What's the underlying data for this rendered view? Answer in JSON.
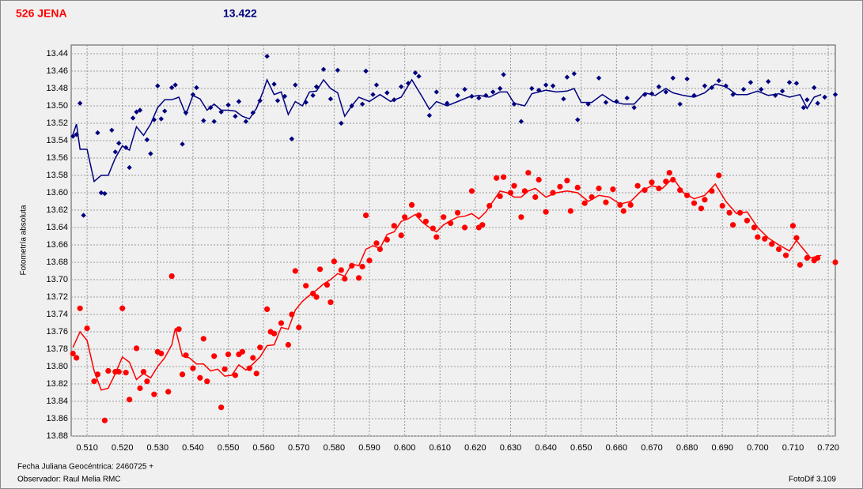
{
  "header": {
    "object": "526 JENA",
    "magnitude": "13.422"
  },
  "footer": {
    "date": "Fecha Juliana Geocéntrica: 2460725 +",
    "observer": "Observador: Raul Melia RMC",
    "software": "FotoDif 3.109"
  },
  "chart_data": {
    "type": "scatter",
    "y_label": "Fotometría absoluta",
    "grid": true,
    "y_inverted": true,
    "xlim": [
      0.5055,
      0.722
    ],
    "ylim": [
      13.88,
      13.43
    ],
    "xticks": [
      {
        "value": 0.51,
        "label": "0.510"
      },
      {
        "value": 0.52,
        "label": "0.520"
      },
      {
        "value": 0.53,
        "label": "0.530"
      },
      {
        "value": 0.54,
        "label": "0.540"
      },
      {
        "value": 0.55,
        "label": "0.550"
      },
      {
        "value": 0.56,
        "label": "0.560"
      },
      {
        "value": 0.57,
        "label": "0.570"
      },
      {
        "value": 0.58,
        "label": "0.580"
      },
      {
        "value": 0.59,
        "label": "0.590"
      },
      {
        "value": 0.6,
        "label": "0.600"
      },
      {
        "value": 0.61,
        "label": "0.610"
      },
      {
        "value": 0.62,
        "label": "0.620"
      },
      {
        "value": 0.63,
        "label": "0.630"
      },
      {
        "value": 0.64,
        "label": "0.640"
      },
      {
        "value": 0.65,
        "label": "0.650"
      },
      {
        "value": 0.66,
        "label": "0.660"
      },
      {
        "value": 0.67,
        "label": "0.670"
      },
      {
        "value": 0.68,
        "label": "0.680"
      },
      {
        "value": 0.69,
        "label": "0.690"
      },
      {
        "value": 0.7,
        "label": "0.700"
      },
      {
        "value": 0.71,
        "label": "0.710"
      },
      {
        "value": 0.72,
        "label": "0.720"
      }
    ],
    "yticks": [
      13.44,
      13.46,
      13.48,
      {
        "value": 13.5,
        "label": "13.50"
      },
      13.52,
      13.54,
      13.56,
      13.58,
      {
        "value": 13.6,
        "label": "13.60"
      },
      13.62,
      13.64,
      13.66,
      13.68,
      {
        "value": 13.7,
        "label": "13.70"
      },
      13.72,
      13.74,
      13.76,
      13.78,
      {
        "value": 13.8,
        "label": "13.80"
      },
      13.82,
      13.84,
      13.86,
      13.88
    ],
    "series": [
      {
        "color": "#000080",
        "marker": "diamond",
        "x": [
          0.506,
          0.507,
          0.508,
          0.509,
          0.513,
          0.514,
          0.515,
          0.517,
          0.518,
          0.519,
          0.521,
          0.522,
          0.523,
          0.524,
          0.525,
          0.527,
          0.528,
          0.529,
          0.53,
          0.531,
          0.532,
          0.534,
          0.535,
          0.537,
          0.538,
          0.54,
          0.541,
          0.543,
          0.545,
          0.546,
          0.548,
          0.55,
          0.552,
          0.553,
          0.555,
          0.557,
          0.559,
          0.561,
          0.563,
          0.564,
          0.566,
          0.568,
          0.569,
          0.572,
          0.574,
          0.575,
          0.577,
          0.579,
          0.581,
          0.582,
          0.585,
          0.588,
          0.589,
          0.591,
          0.592,
          0.595,
          0.597,
          0.599,
          0.601,
          0.603,
          0.604,
          0.607,
          0.609,
          0.612,
          0.615,
          0.617,
          0.619,
          0.621,
          0.623,
          0.625,
          0.627,
          0.628,
          0.631,
          0.633,
          0.636,
          0.638,
          0.64,
          0.642,
          0.645,
          0.646,
          0.648,
          0.649,
          0.652,
          0.655,
          0.657,
          0.66,
          0.663,
          0.665,
          0.668,
          0.67,
          0.672,
          0.674,
          0.676,
          0.678,
          0.68,
          0.682,
          0.685,
          0.687,
          0.689,
          0.691,
          0.693,
          0.696,
          0.698,
          0.701,
          0.703,
          0.705,
          0.707,
          0.709,
          0.711,
          0.713,
          0.714,
          0.716,
          0.717,
          0.719,
          0.722
        ],
        "values": [
          13.535,
          13.533,
          13.497,
          13.626,
          13.531,
          13.6,
          13.601,
          13.528,
          13.553,
          13.543,
          13.548,
          13.571,
          13.514,
          13.507,
          13.505,
          13.539,
          13.555,
          13.516,
          13.477,
          13.515,
          13.506,
          13.479,
          13.476,
          13.544,
          13.508,
          13.487,
          13.479,
          13.517,
          13.502,
          13.518,
          13.507,
          13.499,
          13.512,
          13.495,
          13.518,
          13.508,
          13.494,
          13.443,
          13.475,
          13.494,
          13.489,
          13.538,
          13.476,
          13.496,
          13.488,
          13.478,
          13.458,
          13.492,
          13.459,
          13.52,
          13.5,
          13.498,
          13.46,
          13.487,
          13.476,
          13.485,
          13.493,
          13.478,
          13.474,
          13.462,
          13.466,
          13.511,
          13.484,
          13.497,
          13.488,
          13.481,
          13.489,
          13.491,
          13.488,
          13.484,
          13.48,
          13.464,
          13.498,
          13.518,
          13.48,
          13.482,
          13.476,
          13.477,
          13.492,
          13.467,
          13.463,
          13.516,
          13.498,
          13.468,
          13.496,
          13.495,
          13.491,
          13.502,
          13.487,
          13.486,
          13.478,
          13.484,
          13.468,
          13.498,
          13.469,
          13.488,
          13.477,
          13.479,
          13.471,
          13.477,
          13.487,
          13.481,
          13.473,
          13.481,
          13.472,
          13.488,
          13.483,
          13.473,
          13.474,
          13.502,
          13.493,
          13.479,
          13.497,
          13.49,
          13.487
        ]
      },
      {
        "color": "#000080",
        "marker": "line",
        "x": [
          0.506,
          0.507,
          0.508,
          0.51,
          0.512,
          0.514,
          0.516,
          0.518,
          0.52,
          0.522,
          0.524,
          0.526,
          0.528,
          0.53,
          0.532,
          0.534,
          0.536,
          0.538,
          0.54,
          0.542,
          0.544,
          0.546,
          0.548,
          0.55,
          0.552,
          0.554,
          0.556,
          0.558,
          0.56,
          0.561,
          0.563,
          0.565,
          0.567,
          0.569,
          0.571,
          0.573,
          0.575,
          0.577,
          0.579,
          0.581,
          0.583,
          0.585,
          0.587,
          0.59,
          0.593,
          0.596,
          0.599,
          0.602,
          0.605,
          0.607,
          0.609,
          0.612,
          0.615,
          0.618,
          0.621,
          0.624,
          0.627,
          0.629,
          0.631,
          0.634,
          0.636,
          0.64,
          0.643,
          0.646,
          0.648,
          0.65,
          0.653,
          0.656,
          0.659,
          0.662,
          0.665,
          0.668,
          0.671,
          0.674,
          0.676,
          0.679,
          0.682,
          0.685,
          0.688,
          0.691,
          0.694,
          0.697,
          0.7,
          0.703,
          0.706,
          0.709,
          0.712,
          0.714,
          0.716,
          0.718
        ],
        "values": [
          13.533,
          13.521,
          13.55,
          13.55,
          13.587,
          13.58,
          13.58,
          13.56,
          13.546,
          13.551,
          13.524,
          13.534,
          13.521,
          13.502,
          13.493,
          13.493,
          13.49,
          13.51,
          13.488,
          13.492,
          13.505,
          13.498,
          13.505,
          13.505,
          13.506,
          13.512,
          13.515,
          13.503,
          13.482,
          13.47,
          13.487,
          13.484,
          13.51,
          13.495,
          13.5,
          13.484,
          13.483,
          13.47,
          13.48,
          13.485,
          13.512,
          13.5,
          13.49,
          13.495,
          13.487,
          13.495,
          13.49,
          13.47,
          13.49,
          13.504,
          13.495,
          13.5,
          13.495,
          13.49,
          13.488,
          13.49,
          13.484,
          13.484,
          13.497,
          13.5,
          13.486,
          13.482,
          13.484,
          13.483,
          13.48,
          13.496,
          13.496,
          13.487,
          13.495,
          13.498,
          13.498,
          13.485,
          13.488,
          13.48,
          13.485,
          13.488,
          13.49,
          13.485,
          13.475,
          13.478,
          13.487,
          13.487,
          13.483,
          13.488,
          13.486,
          13.49,
          13.487,
          13.503,
          13.49,
          13.487
        ]
      },
      {
        "color": "#ff0000",
        "marker": "circle",
        "x": [
          0.506,
          0.507,
          0.508,
          0.51,
          0.512,
          0.513,
          0.515,
          0.516,
          0.518,
          0.519,
          0.52,
          0.521,
          0.522,
          0.524,
          0.525,
          0.526,
          0.527,
          0.529,
          0.53,
          0.531,
          0.533,
          0.534,
          0.536,
          0.537,
          0.538,
          0.54,
          0.542,
          0.543,
          0.544,
          0.546,
          0.548,
          0.549,
          0.55,
          0.552,
          0.553,
          0.554,
          0.556,
          0.557,
          0.558,
          0.559,
          0.561,
          0.562,
          0.563,
          0.565,
          0.567,
          0.568,
          0.569,
          0.57,
          0.572,
          0.574,
          0.575,
          0.576,
          0.578,
          0.579,
          0.58,
          0.582,
          0.583,
          0.585,
          0.587,
          0.588,
          0.589,
          0.59,
          0.592,
          0.593,
          0.595,
          0.597,
          0.599,
          0.6,
          0.602,
          0.604,
          0.606,
          0.608,
          0.609,
          0.611,
          0.613,
          0.615,
          0.617,
          0.619,
          0.621,
          0.622,
          0.624,
          0.626,
          0.627,
          0.628,
          0.63,
          0.631,
          0.633,
          0.634,
          0.635,
          0.637,
          0.638,
          0.64,
          0.642,
          0.644,
          0.646,
          0.647,
          0.649,
          0.651,
          0.653,
          0.655,
          0.657,
          0.659,
          0.661,
          0.662,
          0.664,
          0.666,
          0.668,
          0.67,
          0.672,
          0.674,
          0.675,
          0.676,
          0.678,
          0.68,
          0.682,
          0.684,
          0.685,
          0.687,
          0.689,
          0.69,
          0.692,
          0.693,
          0.695,
          0.697,
          0.699,
          0.7,
          0.702,
          0.704,
          0.706,
          0.708,
          0.71,
          0.711,
          0.712,
          0.714,
          0.716,
          0.717,
          0.722
        ],
        "values": [
          13.785,
          13.79,
          13.733,
          13.756,
          13.817,
          13.809,
          13.862,
          13.805,
          13.806,
          13.806,
          13.733,
          13.807,
          13.838,
          13.779,
          13.825,
          13.806,
          13.817,
          13.832,
          13.783,
          13.785,
          13.829,
          13.696,
          13.757,
          13.809,
          13.787,
          13.802,
          13.813,
          13.768,
          13.817,
          13.788,
          13.847,
          13.803,
          13.786,
          13.81,
          13.786,
          13.783,
          13.802,
          13.79,
          13.808,
          13.778,
          13.734,
          13.76,
          13.762,
          13.75,
          13.775,
          13.74,
          13.69,
          13.755,
          13.707,
          13.716,
          13.72,
          13.688,
          13.706,
          13.726,
          13.679,
          13.689,
          13.699,
          13.684,
          13.698,
          13.685,
          13.626,
          13.678,
          13.658,
          13.665,
          13.654,
          13.638,
          13.649,
          13.628,
          13.614,
          13.626,
          13.633,
          13.641,
          13.651,
          13.628,
          13.635,
          13.623,
          13.64,
          13.598,
          13.64,
          13.637,
          13.615,
          13.583,
          13.604,
          13.582,
          13.6,
          13.592,
          13.628,
          13.598,
          13.577,
          13.605,
          13.585,
          13.622,
          13.6,
          13.593,
          13.586,
          13.621,
          13.594,
          13.612,
          13.605,
          13.595,
          13.611,
          13.596,
          13.614,
          13.621,
          13.614,
          13.592,
          13.597,
          13.588,
          13.595,
          13.587,
          13.577,
          13.585,
          13.597,
          13.603,
          13.612,
          13.618,
          13.608,
          13.598,
          13.58,
          13.615,
          13.623,
          13.637,
          13.623,
          13.632,
          13.64,
          13.651,
          13.653,
          13.659,
          13.665,
          13.672,
          13.638,
          13.652,
          13.683,
          13.675,
          13.678,
          13.675,
          13.68
        ]
      },
      {
        "color": "#ff0000",
        "marker": "line",
        "x": [
          0.506,
          0.508,
          0.51,
          0.512,
          0.514,
          0.516,
          0.518,
          0.52,
          0.522,
          0.524,
          0.526,
          0.528,
          0.53,
          0.532,
          0.534,
          0.535,
          0.537,
          0.539,
          0.541,
          0.543,
          0.545,
          0.547,
          0.549,
          0.551,
          0.553,
          0.555,
          0.557,
          0.559,
          0.561,
          0.563,
          0.565,
          0.567,
          0.569,
          0.571,
          0.573,
          0.575,
          0.577,
          0.579,
          0.581,
          0.583,
          0.585,
          0.587,
          0.589,
          0.591,
          0.593,
          0.595,
          0.597,
          0.599,
          0.601,
          0.603,
          0.605,
          0.607,
          0.609,
          0.611,
          0.613,
          0.615,
          0.617,
          0.619,
          0.621,
          0.623,
          0.625,
          0.627,
          0.629,
          0.631,
          0.633,
          0.635,
          0.637,
          0.64,
          0.643,
          0.646,
          0.649,
          0.652,
          0.655,
          0.658,
          0.661,
          0.664,
          0.667,
          0.67,
          0.673,
          0.676,
          0.679,
          0.682,
          0.685,
          0.688,
          0.691,
          0.694,
          0.697,
          0.7,
          0.703,
          0.706,
          0.709,
          0.711,
          0.713,
          0.715,
          0.718
        ],
        "values": [
          13.778,
          13.76,
          13.77,
          13.805,
          13.827,
          13.825,
          13.808,
          13.789,
          13.795,
          13.815,
          13.808,
          13.813,
          13.8,
          13.79,
          13.775,
          13.756,
          13.788,
          13.79,
          13.797,
          13.797,
          13.805,
          13.803,
          13.811,
          13.81,
          13.798,
          13.804,
          13.797,
          13.789,
          13.776,
          13.775,
          13.755,
          13.757,
          13.735,
          13.725,
          13.718,
          13.712,
          13.705,
          13.7,
          13.693,
          13.696,
          13.682,
          13.684,
          13.665,
          13.661,
          13.664,
          13.648,
          13.645,
          13.633,
          13.63,
          13.625,
          13.634,
          13.64,
          13.645,
          13.637,
          13.632,
          13.628,
          13.627,
          13.624,
          13.63,
          13.622,
          13.61,
          13.598,
          13.6,
          13.605,
          13.605,
          13.598,
          13.595,
          13.605,
          13.6,
          13.598,
          13.6,
          13.61,
          13.603,
          13.605,
          13.613,
          13.61,
          13.598,
          13.592,
          13.595,
          13.583,
          13.6,
          13.607,
          13.603,
          13.59,
          13.61,
          13.624,
          13.622,
          13.64,
          13.652,
          13.66,
          13.667,
          13.655,
          13.665,
          13.675,
          13.672
        ]
      }
    ]
  }
}
